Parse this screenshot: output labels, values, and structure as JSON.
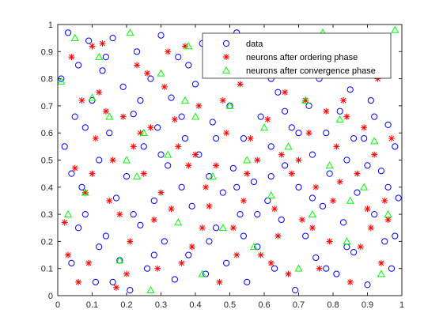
{
  "chart_data": {
    "type": "scatter",
    "title": "",
    "xlabel": "",
    "ylabel": "",
    "xlim": [
      0,
      1
    ],
    "ylim": [
      0,
      1
    ],
    "x_ticks": [
      "0",
      "0.1",
      "0.2",
      "0.3",
      "0.4",
      "0.5",
      "0.6",
      "0.7",
      "0.8",
      "0.9",
      "1"
    ],
    "y_ticks": [
      "0",
      "0.1",
      "0.2",
      "0.3",
      "0.4",
      "0.5",
      "0.6",
      "0.7",
      "0.8",
      "0.9",
      "1"
    ],
    "grid": false,
    "legend_position": "top-right",
    "series": [
      {
        "name": "data",
        "marker": "circle",
        "color": "#0000ff",
        "points": [
          [
            0.01,
            0.8
          ],
          [
            0.02,
            0.55
          ],
          [
            0.03,
            0.97
          ],
          [
            0.04,
            0.12
          ],
          [
            0.05,
            0.66
          ],
          [
            0.06,
            0.85
          ],
          [
            0.07,
            0.4
          ],
          [
            0.08,
            0.3
          ],
          [
            0.09,
            0.94
          ],
          [
            0.1,
            0.72
          ],
          [
            0.11,
            0.05
          ],
          [
            0.12,
            0.5
          ],
          [
            0.13,
            0.83
          ],
          [
            0.14,
            0.22
          ],
          [
            0.15,
            0.6
          ],
          [
            0.16,
            0.95
          ],
          [
            0.17,
            0.36
          ],
          [
            0.18,
            0.13
          ],
          [
            0.19,
            0.77
          ],
          [
            0.2,
            0.44
          ],
          [
            0.21,
            0.02
          ],
          [
            0.22,
            0.67
          ],
          [
            0.23,
            0.9
          ],
          [
            0.24,
            0.26
          ],
          [
            0.25,
            0.55
          ],
          [
            0.26,
            0.1
          ],
          [
            0.27,
            0.8
          ],
          [
            0.28,
            0.35
          ],
          [
            0.29,
            0.62
          ],
          [
            0.3,
            0.96
          ],
          [
            0.31,
            0.2
          ],
          [
            0.32,
            0.48
          ],
          [
            0.33,
            0.73
          ],
          [
            0.34,
            0.06
          ],
          [
            0.35,
            0.88
          ],
          [
            0.36,
            0.4
          ],
          [
            0.37,
            0.58
          ],
          [
            0.38,
            0.15
          ],
          [
            0.39,
            0.33
          ],
          [
            0.4,
            0.78
          ],
          [
            0.41,
            0.52
          ],
          [
            0.42,
            0.93
          ],
          [
            0.43,
            0.08
          ],
          [
            0.44,
            0.44
          ],
          [
            0.45,
            0.64
          ],
          [
            0.46,
            0.25
          ],
          [
            0.47,
            0.84
          ],
          [
            0.48,
            0.38
          ],
          [
            0.49,
            0.12
          ],
          [
            0.5,
            0.7
          ],
          [
            0.51,
            0.47
          ],
          [
            0.52,
            0.97
          ],
          [
            0.53,
            0.3
          ],
          [
            0.54,
            0.58
          ],
          [
            0.55,
            0.05
          ],
          [
            0.56,
            0.82
          ],
          [
            0.57,
            0.42
          ],
          [
            0.58,
            0.18
          ],
          [
            0.59,
            0.66
          ],
          [
            0.6,
            0.9
          ],
          [
            0.61,
            0.35
          ],
          [
            0.62,
            0.55
          ],
          [
            0.63,
            0.1
          ],
          [
            0.64,
            0.75
          ],
          [
            0.65,
            0.28
          ],
          [
            0.66,
            0.48
          ],
          [
            0.67,
            0.86
          ],
          [
            0.68,
            0.62
          ],
          [
            0.69,
            0.02
          ],
          [
            0.7,
            0.4
          ],
          [
            0.71,
            0.95
          ],
          [
            0.72,
            0.22
          ],
          [
            0.73,
            0.7
          ],
          [
            0.74,
            0.52
          ],
          [
            0.75,
            0.14
          ],
          [
            0.76,
            0.8
          ],
          [
            0.77,
            0.33
          ],
          [
            0.78,
            0.6
          ],
          [
            0.79,
            0.45
          ],
          [
            0.8,
            0.9
          ],
          [
            0.81,
            0.08
          ],
          [
            0.82,
            0.68
          ],
          [
            0.83,
            0.27
          ],
          [
            0.84,
            0.5
          ],
          [
            0.85,
            0.76
          ],
          [
            0.86,
            0.16
          ],
          [
            0.87,
            0.38
          ],
          [
            0.88,
            0.93
          ],
          [
            0.89,
            0.58
          ],
          [
            0.9,
            0.04
          ],
          [
            0.91,
            0.72
          ],
          [
            0.92,
            0.3
          ],
          [
            0.93,
            0.85
          ],
          [
            0.94,
            0.46
          ],
          [
            0.95,
            0.2
          ],
          [
            0.96,
            0.63
          ],
          [
            0.97,
            0.1
          ],
          [
            0.98,
            0.55
          ],
          [
            0.99,
            0.36
          ],
          [
            0.04,
            0.45
          ],
          [
            0.08,
            0.62
          ],
          [
            0.12,
            0.18
          ],
          [
            0.16,
            0.05
          ],
          [
            0.24,
            0.72
          ],
          [
            0.28,
            0.15
          ],
          [
            0.36,
            0.66
          ],
          [
            0.44,
            0.2
          ],
          [
            0.52,
            0.4
          ],
          [
            0.58,
            0.3
          ],
          [
            0.62,
            0.8
          ],
          [
            0.66,
            0.68
          ],
          [
            0.74,
            0.36
          ],
          [
            0.78,
            0.1
          ],
          [
            0.86,
            0.58
          ],
          [
            0.92,
            0.66
          ],
          [
            0.96,
            0.4
          ],
          [
            0.06,
            0.25
          ],
          [
            0.14,
            0.88
          ],
          [
            0.22,
            0.3
          ],
          [
            0.3,
            0.52
          ],
          [
            0.38,
            0.85
          ],
          [
            0.46,
            0.58
          ],
          [
            0.54,
            0.22
          ],
          [
            0.62,
            0.44
          ],
          [
            0.7,
            0.6
          ],
          [
            0.78,
            0.82
          ],
          [
            0.84,
            0.18
          ],
          [
            0.9,
            0.48
          ],
          [
            0.98,
            0.22
          ]
        ]
      },
      {
        "name": "neurons after ordering phase",
        "marker": "star",
        "color": "#ff0000",
        "points": [
          [
            0.02,
            0.27
          ],
          [
            0.05,
            0.47
          ],
          [
            0.07,
            0.72
          ],
          [
            0.09,
            0.12
          ],
          [
            0.11,
            0.58
          ],
          [
            0.13,
            0.93
          ],
          [
            0.15,
            0.35
          ],
          [
            0.17,
            0.03
          ],
          [
            0.19,
            0.66
          ],
          [
            0.21,
            0.2
          ],
          [
            0.23,
            0.85
          ],
          [
            0.25,
            0.45
          ],
          [
            0.27,
            0.62
          ],
          [
            0.29,
            0.1
          ],
          [
            0.31,
            0.77
          ],
          [
            0.33,
            0.32
          ],
          [
            0.35,
            0.55
          ],
          [
            0.37,
            0.92
          ],
          [
            0.39,
            0.18
          ],
          [
            0.41,
            0.7
          ],
          [
            0.43,
            0.4
          ],
          [
            0.45,
            0.85
          ],
          [
            0.47,
            0.05
          ],
          [
            0.49,
            0.6
          ],
          [
            0.51,
            0.25
          ],
          [
            0.53,
            0.78
          ],
          [
            0.55,
            0.45
          ],
          [
            0.57,
            0.95
          ],
          [
            0.59,
            0.15
          ],
          [
            0.61,
            0.65
          ],
          [
            0.63,
            0.32
          ],
          [
            0.65,
            0.52
          ],
          [
            0.67,
            0.08
          ],
          [
            0.69,
            0.82
          ],
          [
            0.71,
            0.28
          ],
          [
            0.73,
            0.6
          ],
          [
            0.75,
            0.4
          ],
          [
            0.77,
            0.93
          ],
          [
            0.79,
            0.2
          ],
          [
            0.81,
            0.55
          ],
          [
            0.83,
            0.72
          ],
          [
            0.85,
            0.05
          ],
          [
            0.87,
            0.45
          ],
          [
            0.89,
            0.62
          ],
          [
            0.91,
            0.25
          ],
          [
            0.93,
            0.8
          ],
          [
            0.95,
            0.35
          ],
          [
            0.97,
            0.58
          ],
          [
            0.04,
            0.88
          ],
          [
            0.08,
            0.38
          ],
          [
            0.12,
            0.75
          ],
          [
            0.16,
            0.5
          ],
          [
            0.2,
            0.08
          ],
          [
            0.24,
            0.6
          ],
          [
            0.28,
            0.28
          ],
          [
            0.32,
            0.9
          ],
          [
            0.36,
            0.12
          ],
          [
            0.4,
            0.52
          ],
          [
            0.44,
            0.33
          ],
          [
            0.48,
            0.72
          ],
          [
            0.52,
            0.15
          ],
          [
            0.56,
            0.58
          ],
          [
            0.6,
            0.85
          ],
          [
            0.64,
            0.22
          ],
          [
            0.68,
            0.45
          ],
          [
            0.72,
            0.72
          ],
          [
            0.76,
            0.1
          ],
          [
            0.8,
            0.35
          ],
          [
            0.84,
            0.66
          ],
          [
            0.88,
            0.18
          ],
          [
            0.92,
            0.52
          ],
          [
            0.96,
            0.28
          ],
          [
            0.03,
            0.15
          ],
          [
            0.1,
            0.45
          ],
          [
            0.14,
            0.68
          ],
          [
            0.18,
            0.3
          ],
          [
            0.22,
            0.55
          ],
          [
            0.26,
            0.82
          ],
          [
            0.3,
            0.38
          ],
          [
            0.34,
            0.65
          ],
          [
            0.38,
            0.48
          ],
          [
            0.42,
            0.25
          ],
          [
            0.46,
            0.48
          ],
          [
            0.5,
            0.9
          ],
          [
            0.54,
            0.35
          ],
          [
            0.58,
            0.5
          ],
          [
            0.62,
            0.12
          ],
          [
            0.66,
            0.75
          ],
          [
            0.7,
            0.5
          ],
          [
            0.74,
            0.25
          ],
          [
            0.78,
            0.68
          ],
          [
            0.82,
            0.42
          ],
          [
            0.86,
            0.85
          ],
          [
            0.9,
            0.32
          ],
          [
            0.94,
            0.12
          ],
          [
            0.06,
            0.05
          ],
          [
            0.1,
            0.92
          ]
        ]
      },
      {
        "name": "neurons after convergence phase",
        "marker": "triangle",
        "color": "#00ff00",
        "points": [
          [
            0.01,
            0.79
          ],
          [
            0.05,
            0.95
          ],
          [
            0.08,
            0.38
          ],
          [
            0.1,
            0.73
          ],
          [
            0.12,
            0.88
          ],
          [
            0.15,
            0.66
          ],
          [
            0.18,
            0.13
          ],
          [
            0.21,
            0.97
          ],
          [
            0.23,
            0.44
          ],
          [
            0.25,
            0.6
          ],
          [
            0.27,
            0.02
          ],
          [
            0.3,
            0.82
          ],
          [
            0.32,
            0.52
          ],
          [
            0.35,
            0.27
          ],
          [
            0.38,
            0.92
          ],
          [
            0.4,
            0.66
          ],
          [
            0.42,
            0.08
          ],
          [
            0.45,
            0.44
          ],
          [
            0.48,
            0.25
          ],
          [
            0.5,
            0.7
          ],
          [
            0.52,
            0.88
          ],
          [
            0.55,
            0.5
          ],
          [
            0.57,
            0.18
          ],
          [
            0.6,
            0.62
          ],
          [
            0.62,
            0.37
          ],
          [
            0.65,
            0.85
          ],
          [
            0.67,
            0.55
          ],
          [
            0.7,
            0.1
          ],
          [
            0.72,
            0.72
          ],
          [
            0.74,
            0.3
          ],
          [
            0.77,
            0.97
          ],
          [
            0.79,
            0.48
          ],
          [
            0.82,
            0.65
          ],
          [
            0.84,
            0.2
          ],
          [
            0.87,
            0.82
          ],
          [
            0.89,
            0.4
          ],
          [
            0.92,
            0.57
          ],
          [
            0.94,
            0.08
          ],
          [
            0.96,
            0.3
          ],
          [
            0.98,
            0.98
          ],
          [
            0.03,
            0.3
          ],
          [
            0.2,
            0.5
          ],
          [
            0.37,
            0.72
          ],
          [
            0.63,
            0.92
          ],
          [
            0.85,
            0.35
          ]
        ]
      }
    ]
  }
}
